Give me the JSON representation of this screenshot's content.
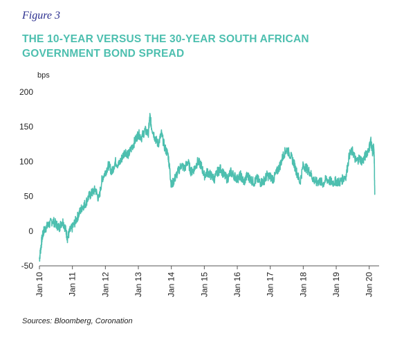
{
  "figure_label": "Figure 3",
  "title": "THE 10-YEAR VERSUS THE 30-YEAR SOUTH AFRICAN GOVERNMENT BOND SPREAD",
  "source": "Sources: Bloomberg, Coronation",
  "colors": {
    "series": "#4dbfaf",
    "title": "#4dbfaf",
    "figure_label": "#2b2f8f",
    "axis": "#555555"
  },
  "chart_data": {
    "type": "line",
    "title": "THE 10-YEAR VERSUS THE 30-YEAR SOUTH AFRICAN GOVERNMENT BOND SPREAD",
    "ylabel": "bps",
    "xlabel": "",
    "ylim": [
      -50,
      200
    ],
    "yticks": [
      -50,
      0,
      50,
      100,
      150,
      200
    ],
    "xlim": [
      2010.0,
      2020.3
    ],
    "xticks": [
      {
        "x": 2010,
        "label": "Jan 10"
      },
      {
        "x": 2011,
        "label": "Jan 11"
      },
      {
        "x": 2012,
        "label": "Jan 12"
      },
      {
        "x": 2013,
        "label": "Jan 13"
      },
      {
        "x": 2014,
        "label": "Jan 14"
      },
      {
        "x": 2015,
        "label": "Jan 15"
      },
      {
        "x": 2016,
        "label": "Jan 16"
      },
      {
        "x": 2017,
        "label": "Jan 17"
      },
      {
        "x": 2018,
        "label": "Jan 18"
      },
      {
        "x": 2019,
        "label": "Jan 19"
      },
      {
        "x": 2020,
        "label": "Jan 20"
      }
    ],
    "grid": false,
    "series": [
      {
        "x": [
          2010.0,
          2010.04,
          2010.08,
          2010.13,
          2010.2,
          2010.3,
          2010.4,
          2010.5,
          2010.6,
          2010.7,
          2010.78,
          2010.85,
          2010.92,
          2011.0,
          2011.1,
          2011.2,
          2011.3,
          2011.4,
          2011.5,
          2011.6,
          2011.7,
          2011.8,
          2011.9,
          2012.0,
          2012.1,
          2012.2,
          2012.3,
          2012.4,
          2012.5,
          2012.6,
          2012.7,
          2012.8,
          2012.9,
          2013.0,
          2013.1,
          2013.2,
          2013.3,
          2013.35,
          2013.4,
          2013.5,
          2013.6,
          2013.7,
          2013.8,
          2013.9,
          2013.95,
          2014.0,
          2014.1,
          2014.2,
          2014.3,
          2014.4,
          2014.5,
          2014.6,
          2014.7,
          2014.8,
          2014.9,
          2015.0,
          2015.1,
          2015.2,
          2015.3,
          2015.4,
          2015.5,
          2015.6,
          2015.7,
          2015.8,
          2015.9,
          2016.0,
          2016.1,
          2016.2,
          2016.3,
          2016.4,
          2016.5,
          2016.6,
          2016.7,
          2016.8,
          2016.9,
          2017.0,
          2017.1,
          2017.2,
          2017.3,
          2017.4,
          2017.5,
          2017.6,
          2017.7,
          2017.8,
          2017.9,
          2018.0,
          2018.1,
          2018.2,
          2018.3,
          2018.4,
          2018.5,
          2018.6,
          2018.7,
          2018.8,
          2018.9,
          2019.0,
          2019.1,
          2019.2,
          2019.3,
          2019.4,
          2019.5,
          2019.6,
          2019.7,
          2019.8,
          2019.9,
          2020.0,
          2020.05,
          2020.1,
          2020.13,
          2020.15,
          2020.17
        ],
        "y": [
          -40,
          -25,
          -10,
          0,
          5,
          10,
          15,
          10,
          5,
          15,
          5,
          -10,
          0,
          5,
          15,
          25,
          35,
          40,
          50,
          55,
          60,
          45,
          75,
          85,
          95,
          85,
          100,
          95,
          105,
          115,
          110,
          120,
          130,
          140,
          135,
          145,
          140,
          165,
          150,
          135,
          125,
          140,
          120,
          110,
          90,
          65,
          75,
          85,
          95,
          90,
          100,
          85,
          90,
          100,
          95,
          80,
          85,
          80,
          75,
          85,
          90,
          80,
          75,
          85,
          80,
          75,
          80,
          70,
          80,
          75,
          70,
          75,
          70,
          72,
          80,
          78,
          75,
          85,
          95,
          110,
          118,
          110,
          100,
          85,
          70,
          95,
          90,
          85,
          75,
          70,
          72,
          68,
          75,
          72,
          70,
          72,
          70,
          75,
          80,
          110,
          115,
          100,
          105,
          100,
          110,
          120,
          130,
          115,
          120,
          110,
          55
        ]
      }
    ]
  }
}
